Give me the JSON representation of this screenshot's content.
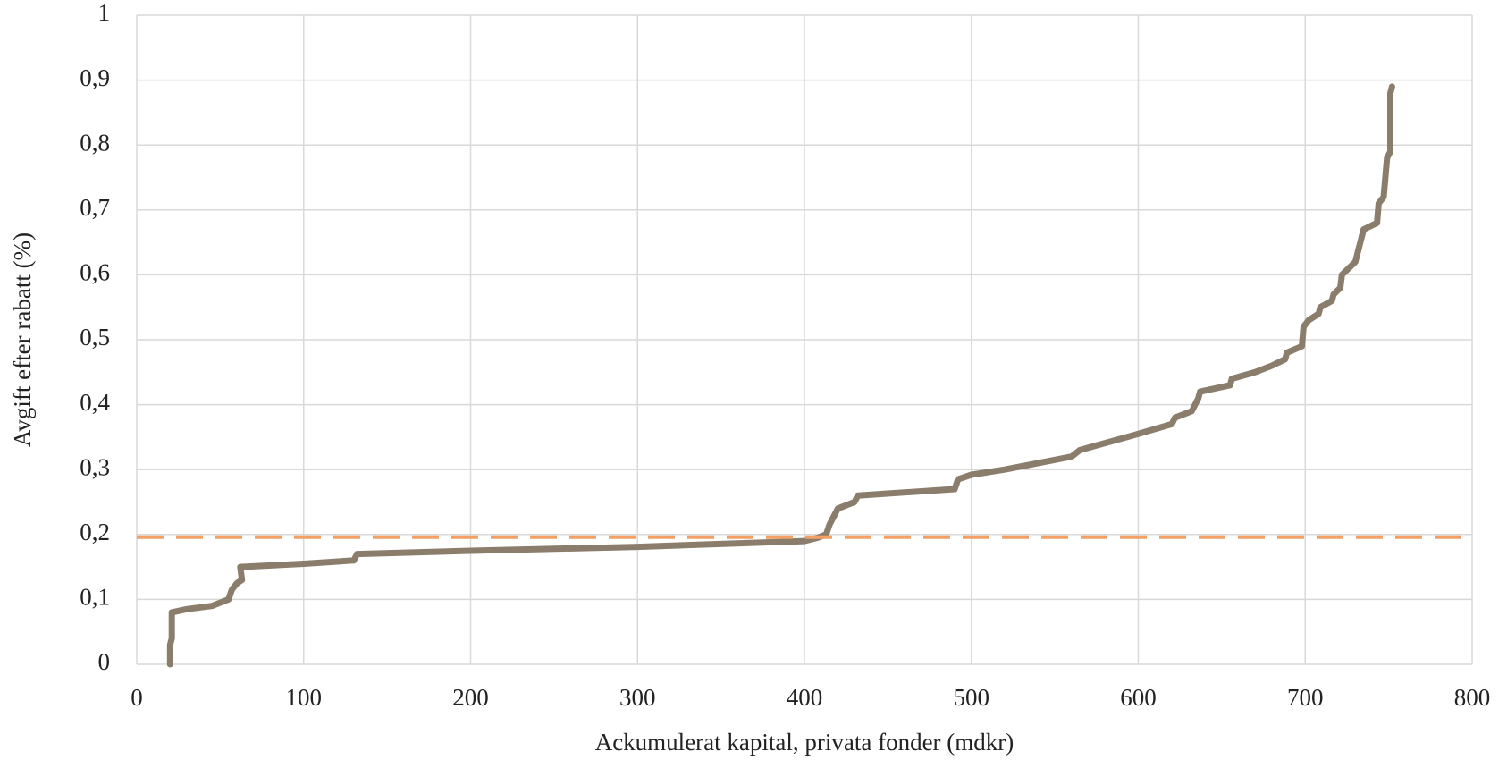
{
  "chart_data": {
    "type": "line",
    "xlabel": "Ackumulerat kapital, privata fonder (mdkr)",
    "ylabel": "Avgift efter rabatt (%)",
    "xlim": [
      0,
      800
    ],
    "xticks": [
      0,
      100,
      200,
      300,
      400,
      500,
      600,
      700,
      800
    ],
    "ylim": [
      0,
      1
    ],
    "yticks": [
      0,
      {
        "value": 0.1,
        "label": "0,1"
      },
      {
        "value": 0.2,
        "label": "0,2"
      },
      {
        "value": 0.3,
        "label": "0,3"
      },
      {
        "value": 0.4,
        "label": "0,4"
      },
      {
        "value": 0.5,
        "label": "0,5"
      },
      {
        "value": 0.6,
        "label": "0,6"
      },
      {
        "value": 0.7,
        "label": "0,7"
      },
      {
        "value": 0.8,
        "label": "0,8"
      },
      {
        "value": 0.9,
        "label": "0,9"
      },
      1
    ],
    "grid": true,
    "series": [
      {
        "color": "#8b7d6b",
        "style": "solid",
        "x": [
          20,
          20,
          21,
          21,
          30,
          45,
          55,
          57,
          60,
          63,
          62,
          100,
          130,
          132,
          200,
          300,
          400,
          408,
          413,
          415,
          420,
          430,
          432,
          490,
          492,
          500,
          520,
          540,
          560,
          565,
          600,
          620,
          622,
          632,
          636,
          637,
          655,
          656,
          670,
          680,
          688,
          689,
          698,
          699,
          702,
          708,
          709,
          716,
          717,
          721,
          722,
          726,
          730,
          732,
          735,
          743,
          744,
          747,
          749,
          751,
          751,
          752
        ],
        "values": [
          0,
          0.03,
          0.04,
          0.08,
          0.085,
          0.09,
          0.1,
          0.115,
          0.125,
          0.13,
          0.15,
          0.155,
          0.16,
          0.17,
          0.175,
          0.181,
          0.19,
          0.195,
          0.2,
          0.215,
          0.24,
          0.25,
          0.26,
          0.27,
          0.285,
          0.292,
          0.3,
          0.31,
          0.32,
          0.33,
          0.355,
          0.37,
          0.38,
          0.39,
          0.41,
          0.42,
          0.43,
          0.44,
          0.45,
          0.46,
          0.47,
          0.48,
          0.49,
          0.52,
          0.53,
          0.54,
          0.55,
          0.56,
          0.57,
          0.58,
          0.6,
          0.61,
          0.62,
          0.64,
          0.67,
          0.68,
          0.71,
          0.72,
          0.78,
          0.79,
          0.88,
          0.89
        ]
      },
      {
        "color": "#f2a065",
        "style": "dashed",
        "x": [
          0,
          800
        ],
        "values": [
          0.196,
          0.196
        ]
      }
    ]
  }
}
